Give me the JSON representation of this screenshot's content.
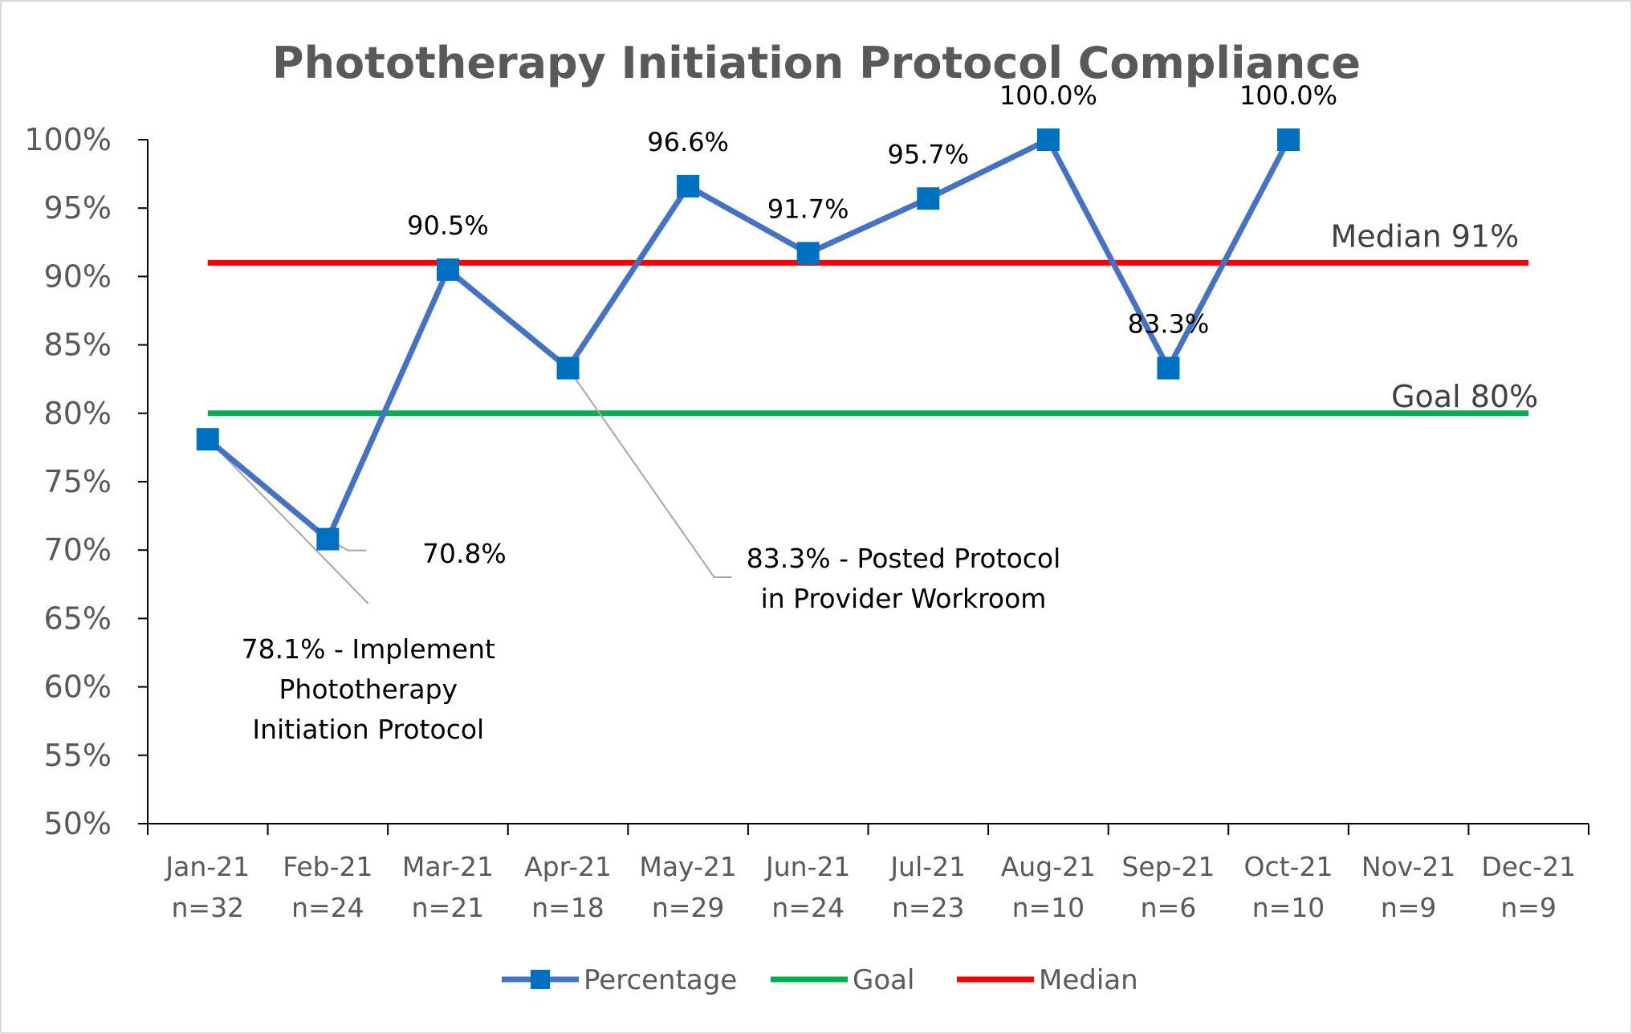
{
  "chart_data": {
    "type": "line",
    "title": "Phototherapy Initiation Protocol Compliance",
    "categories": [
      "Jan-21",
      "Feb-21",
      "Mar-21",
      "Apr-21",
      "May-21",
      "Jun-21",
      "Jul-21",
      "Aug-21",
      "Sep-21",
      "Oct-21",
      "Nov-21",
      "Dec-21"
    ],
    "category_counts": [
      "n=32",
      "n=24",
      "n=21",
      "n=18",
      "n=29",
      "n=24",
      "n=23",
      "n=10",
      "n=6",
      "n=10",
      "n=9",
      "n=9"
    ],
    "ylim": [
      50,
      100
    ],
    "yticks": [
      "50%",
      "55%",
      "60%",
      "65%",
      "70%",
      "75%",
      "80%",
      "85%",
      "90%",
      "95%",
      "100%"
    ],
    "series": [
      {
        "name": "Percentage",
        "color": "#4472c4",
        "marker_color": "#0070c0",
        "marker": "square",
        "values": [
          78.1,
          70.8,
          90.5,
          83.3,
          96.6,
          91.7,
          95.7,
          100.0,
          83.3,
          100.0,
          null,
          null
        ],
        "data_labels": [
          "",
          "",
          "90.5%",
          "",
          "96.6%",
          "91.7%",
          "95.7%",
          "100.0%",
          "83.3%",
          "100.0%",
          "",
          ""
        ]
      },
      {
        "name": "Goal",
        "color": "#00b050",
        "value": 80
      },
      {
        "name": "Median",
        "color": "#ff0000",
        "value": 91
      }
    ],
    "reference_labels": {
      "median": "Median 91%",
      "goal": "Goal 80%"
    },
    "annotations": [
      {
        "category": "Jan-21",
        "lines": [
          "78.1% - Implement",
          "Phototherapy",
          "Initiation Protocol"
        ]
      },
      {
        "category": "Feb-21",
        "lines": [
          "70.8%"
        ]
      },
      {
        "category": "Apr-21",
        "lines": [
          "83.3% - Posted Protocol",
          "in Provider Workroom"
        ]
      }
    ],
    "legend_position": "bottom",
    "grid": false
  }
}
